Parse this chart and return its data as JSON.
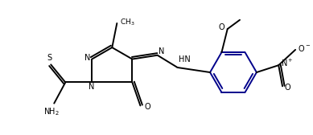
{
  "bg_color": "#ffffff",
  "line_color": "#000000",
  "ring_color": "#00008B",
  "bond_lw": 1.4,
  "font_size": 7.0,
  "fig_width": 3.89,
  "fig_height": 1.68,
  "dpi": 100,
  "xlim": [
    0.0,
    9.5
  ],
  "ylim": [
    0.2,
    4.2
  ]
}
